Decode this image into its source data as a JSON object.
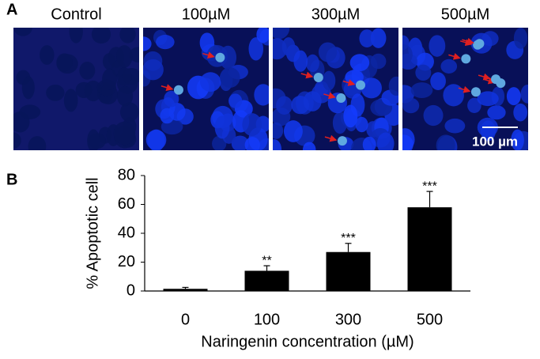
{
  "panel_labels": [
    "A",
    "B"
  ],
  "images": [
    {
      "label": "Control"
    },
    {
      "label": "100µM"
    },
    {
      "label": "300µM"
    },
    {
      "label": "500µM"
    }
  ],
  "scale_bar": "100 µm",
  "chart_data": {
    "type": "bar",
    "categories": [
      "0",
      "100",
      "300",
      "500"
    ],
    "values": [
      1.5,
      14,
      27,
      58
    ],
    "errors": [
      1,
      3.5,
      6,
      11
    ],
    "significance": [
      null,
      "**",
      "***",
      "***"
    ],
    "color": "#000000",
    "xlabel": "Naringenin concentration (µM)",
    "ylabel": "% Apoptotic cell",
    "ylim": [
      0,
      80
    ],
    "yticks": [
      0,
      20,
      40,
      60,
      80
    ]
  }
}
